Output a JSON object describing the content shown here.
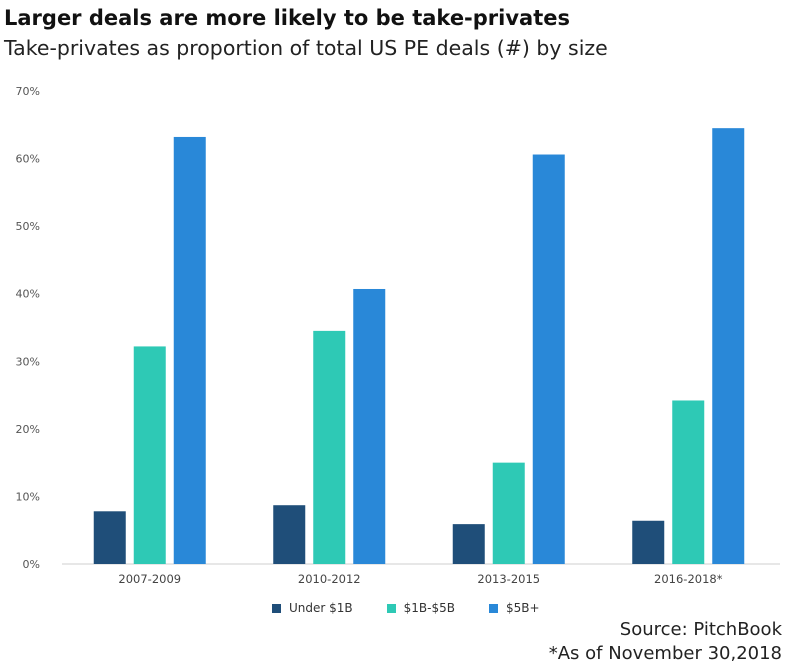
{
  "header": {
    "title": "Larger deals are more likely to be take-privates",
    "subtitle": "Take-privates as proportion of total US PE deals (#) by size"
  },
  "chart_data": {
    "type": "bar",
    "categories": [
      "2007-2009",
      "2010-2012",
      "2013-2015",
      "2016-2018*"
    ],
    "series": [
      {
        "name": "Under $1B",
        "color": "#1f4e79",
        "values": [
          7.8,
          8.7,
          5.9,
          6.4
        ]
      },
      {
        "name": "$1B-$5B",
        "color": "#2ec9b5",
        "values": [
          32.2,
          34.5,
          15.0,
          24.2
        ]
      },
      {
        "name": "$5B+",
        "color": "#2988d8",
        "values": [
          63.2,
          40.7,
          60.6,
          64.5
        ]
      }
    ],
    "y_ticks": [
      "0%",
      "10%",
      "20%",
      "30%",
      "40%",
      "50%",
      "60%",
      "70%"
    ],
    "ylim": [
      0,
      70
    ],
    "grid": false,
    "legend_position": "bottom"
  },
  "footer": {
    "source": "Source: PitchBook",
    "footnote": "*As of November 30,2018"
  }
}
